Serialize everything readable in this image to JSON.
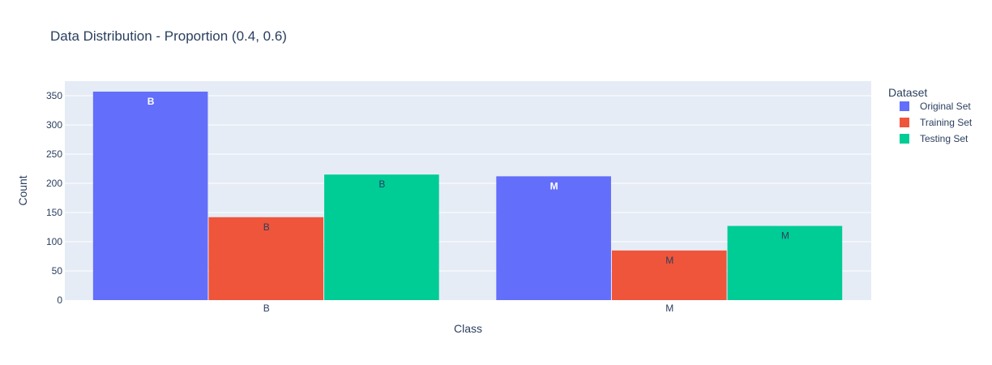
{
  "chart_data": {
    "type": "bar",
    "title": "Data Distribution - Proportion (0.4, 0.6)",
    "xlabel": "Class",
    "ylabel": "Count",
    "categories": [
      "B",
      "M"
    ],
    "ylim": [
      0,
      375
    ],
    "yticks": [
      0,
      50,
      100,
      150,
      200,
      250,
      300,
      350
    ],
    "grid": true,
    "legend_title": "Dataset",
    "legend_position": "top-right",
    "series": [
      {
        "name": "Original Set",
        "values": [
          357,
          212
        ],
        "labels": [
          "B",
          "M"
        ],
        "color": "#636efa",
        "label_color": "#ffffff"
      },
      {
        "name": "Training Set",
        "values": [
          142,
          85
        ],
        "labels": [
          "B",
          "M"
        ],
        "color": "#ef553b",
        "label_color": "#2a3f5f"
      },
      {
        "name": "Testing Set",
        "values": [
          215,
          127
        ],
        "labels": [
          "B",
          "M"
        ],
        "color": "#00cc96",
        "label_color": "#2a3f5f"
      }
    ]
  },
  "colors": {
    "plot_background": "#e5ecf6",
    "gridline": "#ffffff",
    "text": "#2a3f5f"
  }
}
